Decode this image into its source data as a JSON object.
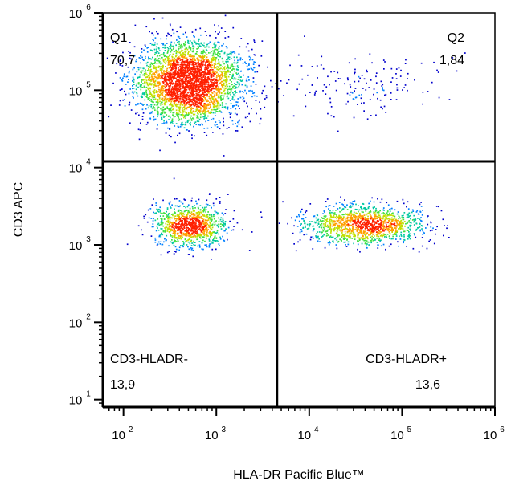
{
  "chart_data": {
    "type": "scatter",
    "xlabel": "HLA-DR Pacific Blue™",
    "ylabel": "CD3 APC",
    "x_scale": "log",
    "y_scale": "log",
    "xlim": [
      60,
      1000000
    ],
    "ylim": [
      8,
      1000000
    ],
    "x_ticks": [
      {
        "value": 100,
        "base": "10",
        "exp": "2"
      },
      {
        "value": 1000,
        "base": "10",
        "exp": "3"
      },
      {
        "value": 10000,
        "base": "10",
        "exp": "4"
      },
      {
        "value": 100000,
        "base": "10",
        "exp": "5"
      },
      {
        "value": 1000000,
        "base": "10",
        "exp": "6"
      }
    ],
    "y_ticks": [
      {
        "value": 10,
        "base": "10",
        "exp": "1"
      },
      {
        "value": 100,
        "base": "10",
        "exp": "2"
      },
      {
        "value": 1000,
        "base": "10",
        "exp": "3"
      },
      {
        "value": 10000,
        "base": "10",
        "exp": "4"
      },
      {
        "value": 100000,
        "base": "10",
        "exp": "5"
      },
      {
        "value": 1000000,
        "base": "10",
        "exp": "6"
      }
    ],
    "gates": {
      "x_threshold": 4500,
      "y_threshold": 12000
    },
    "quadrants": [
      {
        "name": "Q1",
        "value": "70,7"
      },
      {
        "name": "Q2",
        "value": "1,84"
      },
      {
        "name": "CD3-HLADR-",
        "value": "13,9"
      },
      {
        "name": "CD3-HLADR+",
        "value": "13,6"
      }
    ],
    "populations": [
      {
        "cx": 500,
        "cy": 130000,
        "sx_dec": 0.28,
        "sy_dec": 0.26,
        "n": 3400
      },
      {
        "cx": 520,
        "cy": 1800,
        "sx_dec": 0.2,
        "sy_dec": 0.14,
        "n": 1000
      },
      {
        "cx": 38000,
        "cy": 1850,
        "sx_dec": 0.32,
        "sy_dec": 0.12,
        "n": 1350
      },
      {
        "cx": 35000,
        "cy": 120000,
        "sx_dec": 0.45,
        "sy_dec": 0.2,
        "n": 160
      }
    ],
    "density_colors": [
      "#0000cc",
      "#0080ff",
      "#00c8a0",
      "#40e040",
      "#c0e000",
      "#ffa000",
      "#ff2000"
    ]
  }
}
